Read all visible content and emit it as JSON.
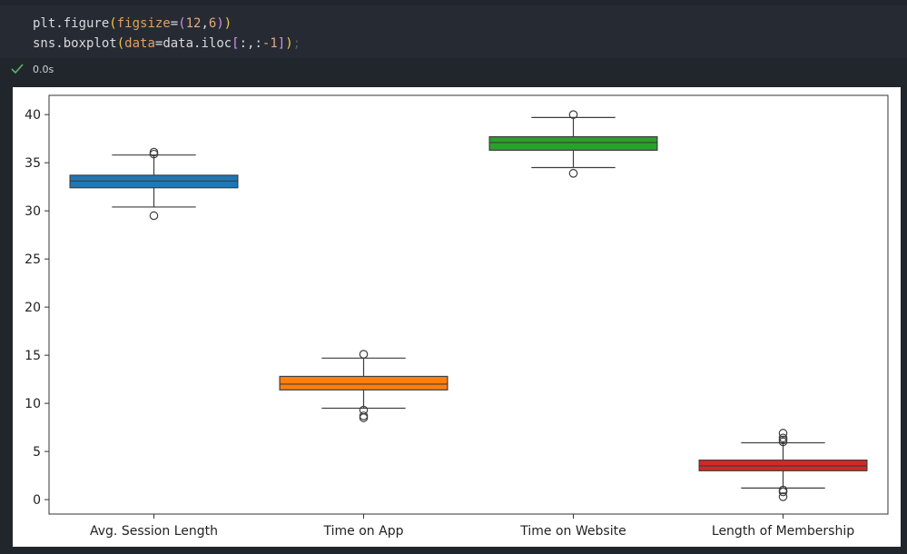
{
  "code": {
    "line1": [
      {
        "t": "plt.figure",
        "c": "#d7dae0"
      },
      {
        "t": "(",
        "c": "#f2c94c"
      },
      {
        "t": "figsize",
        "c": "#e0a060"
      },
      {
        "t": "=",
        "c": "#d7dae0"
      },
      {
        "t": "(",
        "c": "#d291e4"
      },
      {
        "t": "12",
        "c": "#e8a87c"
      },
      {
        "t": ",",
        "c": "#d7dae0"
      },
      {
        "t": "6",
        "c": "#e8a87c"
      },
      {
        "t": ")",
        "c": "#d291e4"
      },
      {
        "t": ")",
        "c": "#f2c94c"
      }
    ],
    "line2": [
      {
        "t": "sns.boxplot",
        "c": "#d7dae0"
      },
      {
        "t": "(",
        "c": "#f2c94c"
      },
      {
        "t": "data",
        "c": "#e0a060"
      },
      {
        "t": "=",
        "c": "#d7dae0"
      },
      {
        "t": "data.iloc",
        "c": "#d7dae0"
      },
      {
        "t": "[",
        "c": "#d291e4"
      },
      {
        "t": ":,:",
        "c": "#d7dae0"
      },
      {
        "t": "-1",
        "c": "#e8a87c"
      },
      {
        "t": "]",
        "c": "#d291e4"
      },
      {
        "t": ")",
        "c": "#f2c94c"
      },
      {
        "t": ";",
        "c": "#5a5f66"
      }
    ]
  },
  "status": {
    "time": "0.0s",
    "icon": "check-icon",
    "color": "#5fb36b"
  },
  "chart_data": {
    "type": "boxplot",
    "ylim": [
      -1.5,
      42
    ],
    "yticks": [
      0,
      5,
      10,
      15,
      20,
      25,
      30,
      35,
      40
    ],
    "grid": false,
    "categories": [
      "Avg. Session Length",
      "Time on App",
      "Time on Website",
      "Length of Membership"
    ],
    "boxes": [
      {
        "color": "#1f77b4",
        "whislo": 30.4,
        "q1": 32.4,
        "median": 33.1,
        "q3": 33.7,
        "whishi": 35.8,
        "fliers": [
          29.5,
          35.9,
          36.1
        ]
      },
      {
        "color": "#ff7f0e",
        "whislo": 9.5,
        "q1": 11.4,
        "median": 12.0,
        "q3": 12.8,
        "whishi": 14.7,
        "fliers": [
          8.5,
          8.7,
          9.3,
          15.1
        ]
      },
      {
        "color": "#2ca02c",
        "whislo": 34.5,
        "q1": 36.3,
        "median": 37.1,
        "q3": 37.7,
        "whishi": 39.7,
        "fliers": [
          33.9,
          40.0
        ]
      },
      {
        "color": "#d62728",
        "whislo": 1.2,
        "q1": 3.0,
        "median": 3.5,
        "q3": 4.1,
        "whishi": 5.9,
        "fliers": [
          0.3,
          0.8,
          1.0,
          6.0,
          6.2,
          6.4,
          6.9
        ]
      }
    ]
  }
}
